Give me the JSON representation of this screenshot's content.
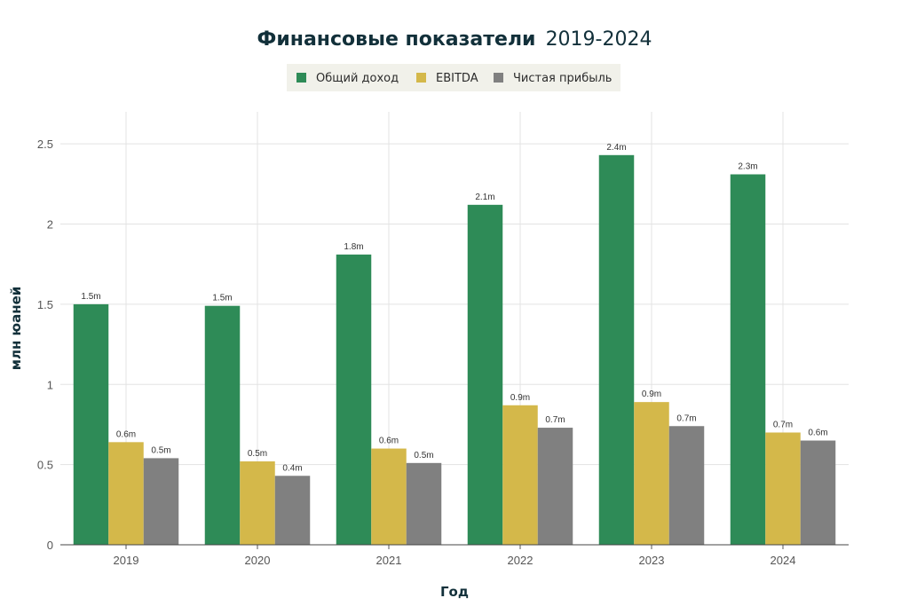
{
  "chart_data": {
    "type": "bar",
    "title": "Финансовые показатели",
    "title_years": "2019-2024",
    "xlabel": "Год",
    "ylabel": "млн юаней",
    "categories": [
      "2019",
      "2020",
      "2021",
      "2022",
      "2023",
      "2024"
    ],
    "ylim": [
      0,
      2.7
    ],
    "yticks": [
      0,
      0.5,
      1,
      1.5,
      2,
      2.5
    ],
    "ytick_labels": [
      "0",
      "0.5",
      "1",
      "1.5",
      "2",
      "2.5"
    ],
    "grid": true,
    "legend_position": "top-center",
    "series": [
      {
        "name": "Общий доход",
        "color": "#2e8b57",
        "values": [
          1.5,
          1.49,
          1.81,
          2.12,
          2.43,
          2.31
        ],
        "labels": [
          "1.5m",
          "1.5m",
          "1.8m",
          "2.1m",
          "2.4m",
          "2.3m"
        ]
      },
      {
        "name": "EBITDA",
        "color": "#d4b84a",
        "values": [
          0.64,
          0.52,
          0.6,
          0.87,
          0.89,
          0.7
        ],
        "labels": [
          "0.6m",
          "0.5m",
          "0.6m",
          "0.9m",
          "0.9m",
          "0.7m"
        ]
      },
      {
        "name": "Чистая прибыль",
        "color": "#808080",
        "values": [
          0.54,
          0.43,
          0.51,
          0.73,
          0.74,
          0.65
        ],
        "labels": [
          "0.5m",
          "0.4m",
          "0.5m",
          "0.7m",
          "0.7m",
          "0.6m"
        ]
      }
    ]
  }
}
